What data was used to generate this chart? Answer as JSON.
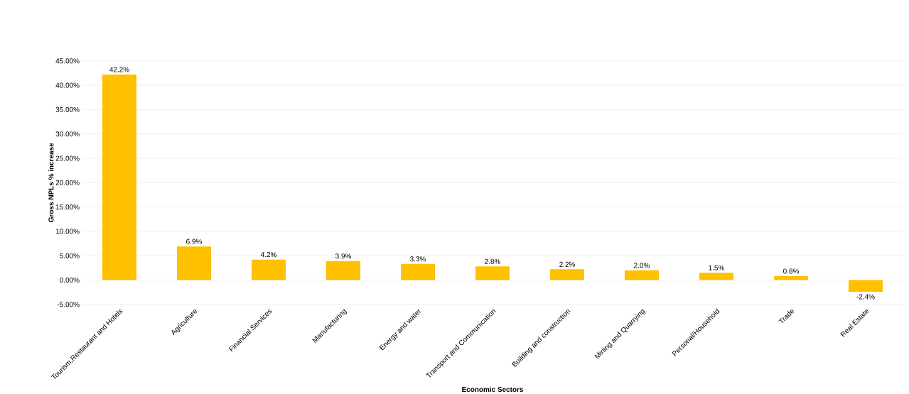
{
  "chart_data": {
    "type": "bar",
    "xlabel": "Economic Sectors",
    "ylabel": "Gross NPLs % increase",
    "categories": [
      "Tourism,Restaurant and Hotels",
      "Agriculture",
      "Financial Services",
      "Manufacturing",
      "Energy and water",
      "Transport and Communication",
      "Building and construction",
      "Mining and Quarrying",
      "Personal/Household",
      "Trade",
      "Real Estate"
    ],
    "values": [
      42.2,
      6.9,
      4.2,
      3.9,
      3.3,
      2.8,
      2.2,
      2.0,
      1.5,
      0.8,
      -2.4
    ],
    "value_labels": [
      "42.2%",
      "6.9%",
      "4.2%",
      "3.9%",
      "3.3%",
      "2.8%",
      "2.2%",
      "2.0%",
      "1.5%",
      "0.8%",
      "-2.4%"
    ],
    "color": "#ffc000",
    "ylim": [
      -5,
      45
    ],
    "yticks": [
      {
        "value": -5,
        "label": "-5.00%"
      },
      {
        "value": 0,
        "label": "0.00%"
      },
      {
        "value": 5,
        "label": "5.00%"
      },
      {
        "value": 10,
        "label": "10.00%"
      },
      {
        "value": 15,
        "label": "15.00%"
      },
      {
        "value": 20,
        "label": "20.00%"
      },
      {
        "value": 25,
        "label": "25.00%"
      },
      {
        "value": 30,
        "label": "30.00%"
      },
      {
        "value": 35,
        "label": "35.00%"
      },
      {
        "value": 40,
        "label": "40.00%"
      },
      {
        "value": 45,
        "label": "45.00%"
      }
    ],
    "grid": "y"
  }
}
